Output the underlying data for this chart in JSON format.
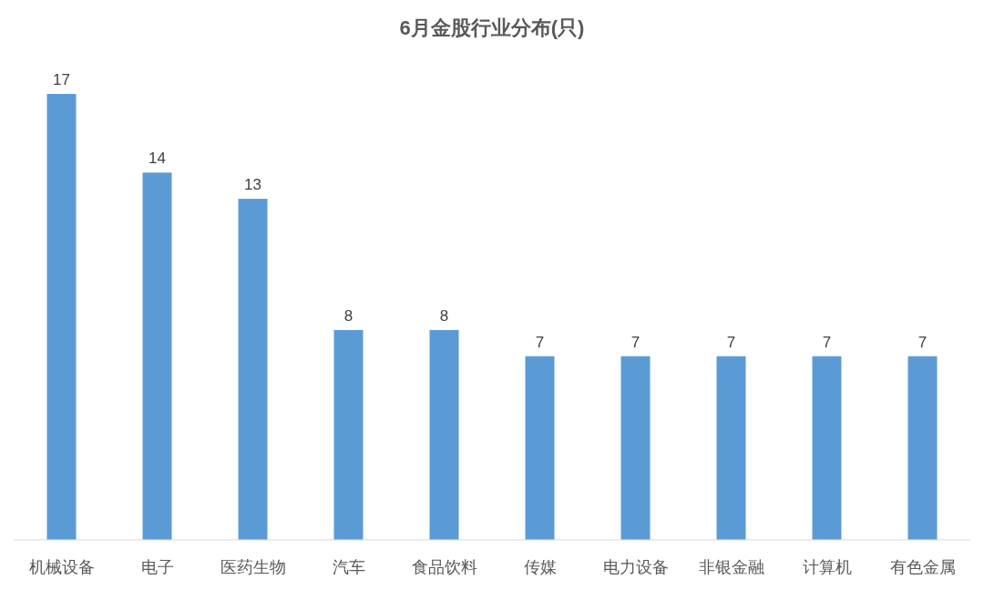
{
  "chart_data": {
    "type": "bar",
    "title": "6月金股行业分布(只)",
    "categories": [
      "机械设备",
      "电子",
      "医药生物",
      "汽车",
      "食品饮料",
      "传媒",
      "电力设备",
      "非银金融",
      "计算机",
      "有色金属"
    ],
    "values": [
      17,
      14,
      13,
      8,
      8,
      7,
      7,
      7,
      7,
      7
    ],
    "color": "#5b9bd5",
    "data_labels": true
  }
}
